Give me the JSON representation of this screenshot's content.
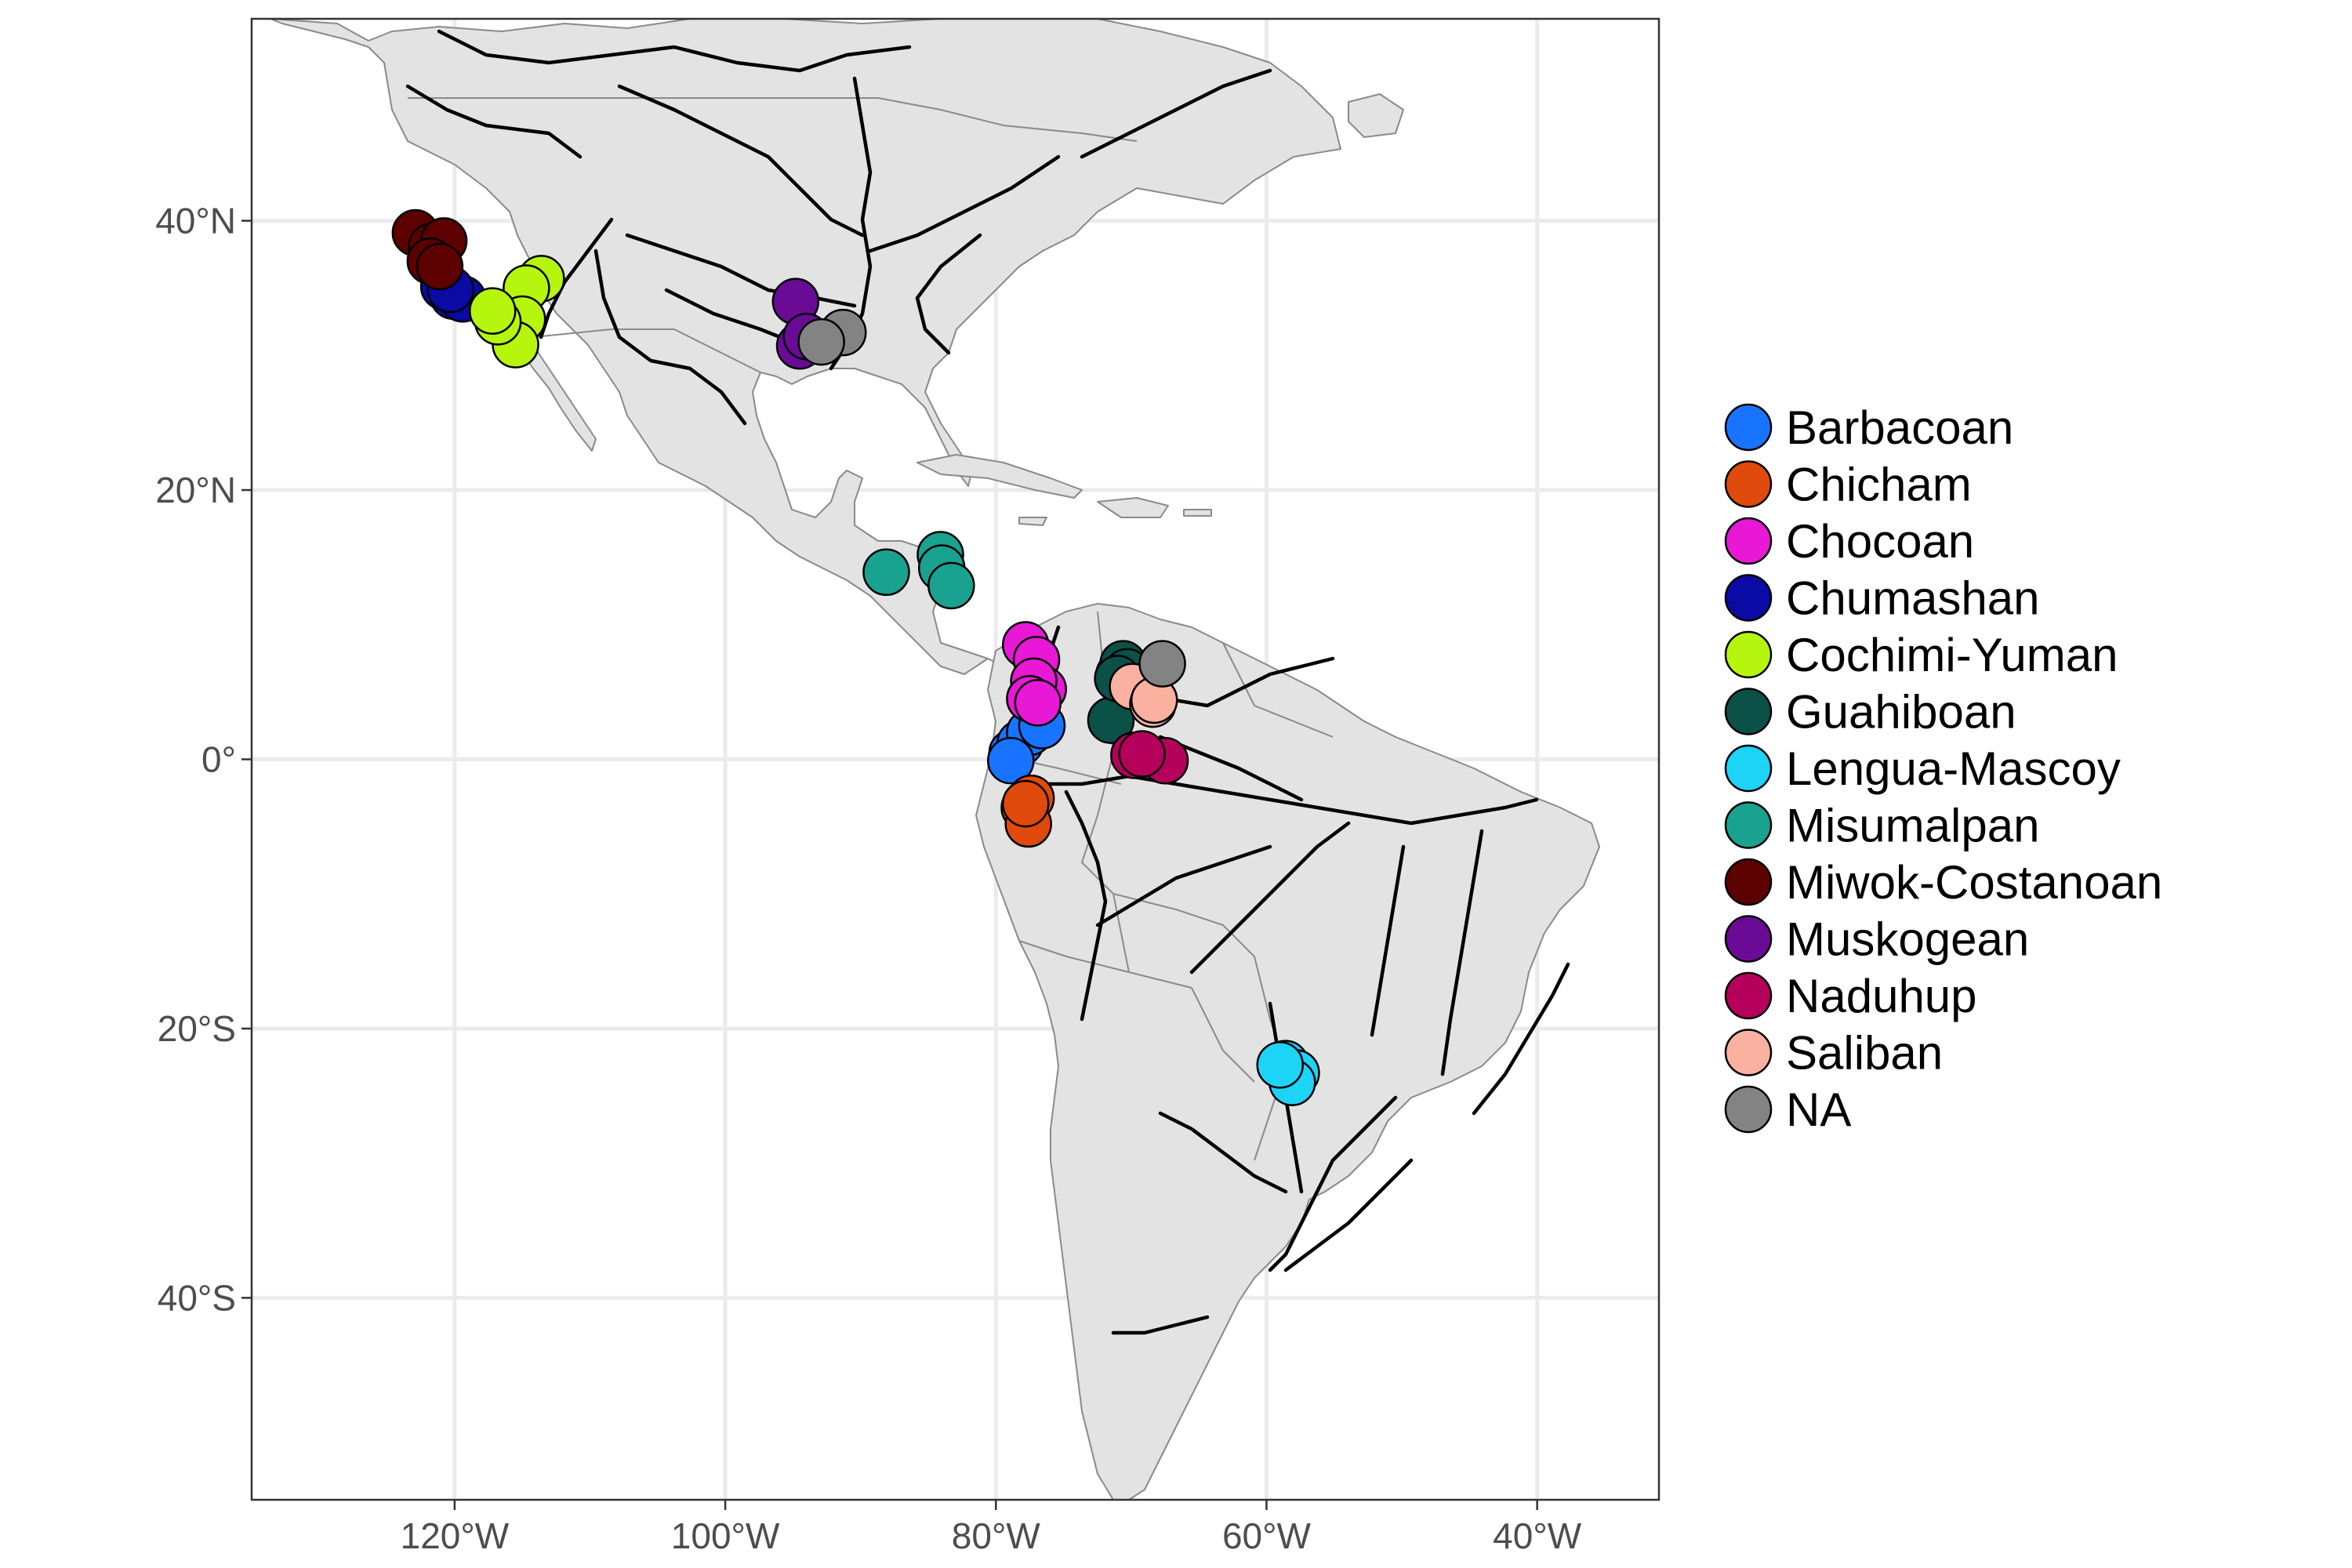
{
  "chart_data": {
    "type": "scatter",
    "title": "",
    "xlabel": "",
    "ylabel": "",
    "xlim": [
      -135,
      -31
    ],
    "ylim": [
      -55,
      55
    ],
    "grid": true,
    "legend_position": "right",
    "x_ticks": [
      {
        "value": -120,
        "label": "120°W"
      },
      {
        "value": -100,
        "label": "100°W"
      },
      {
        "value": -80,
        "label": "80°W"
      },
      {
        "value": -60,
        "label": "60°W"
      },
      {
        "value": -40,
        "label": "40°W"
      }
    ],
    "y_ticks": [
      {
        "value": 40,
        "label": "40°N"
      },
      {
        "value": 20,
        "label": "20°N"
      },
      {
        "value": 0,
        "label": "0°"
      },
      {
        "value": -20,
        "label": "20°S"
      },
      {
        "value": -40,
        "label": "40°S"
      }
    ],
    "series": [
      {
        "name": "Barbacoan",
        "color": "#1874ff",
        "points": [
          [
            -78.8,
            0.5
          ],
          [
            -78.2,
            1.2
          ],
          [
            -77.5,
            2.0
          ],
          [
            -76.6,
            2.5
          ],
          [
            -78.9,
            -0.1
          ]
        ]
      },
      {
        "name": "Chicham",
        "color": "#e04a0c",
        "points": [
          [
            -77.4,
            -2.9
          ],
          [
            -77.9,
            -3.6
          ],
          [
            -77.6,
            -4.8
          ],
          [
            -77.8,
            -3.3
          ]
        ]
      },
      {
        "name": "Chocoan",
        "color": "#e818d6",
        "points": [
          [
            -77.8,
            8.5
          ],
          [
            -77.0,
            7.4
          ],
          [
            -76.5,
            5.2
          ],
          [
            -77.2,
            5.8
          ],
          [
            -77.5,
            4.5
          ],
          [
            -76.9,
            4.2
          ]
        ]
      },
      {
        "name": "Chumashan",
        "color": "#0a0aa4",
        "points": [
          [
            -120.8,
            35.1
          ],
          [
            -120.1,
            34.4
          ],
          [
            -119.4,
            34.2
          ],
          [
            -120.3,
            34.9
          ]
        ]
      },
      {
        "name": "Cochimi-Yuman",
        "color": "#b5f50e",
        "points": [
          [
            -113.6,
            35.7
          ],
          [
            -114.7,
            35.0
          ],
          [
            -115.0,
            32.7
          ],
          [
            -115.5,
            30.8
          ],
          [
            -116.8,
            32.5
          ],
          [
            -117.2,
            33.3
          ]
        ]
      },
      {
        "name": "Guahiboan",
        "color": "#0b5148",
        "points": [
          [
            -70.9,
            6.3
          ],
          [
            -70.6,
            7.1
          ],
          [
            -70.3,
            6.5
          ],
          [
            -71.5,
            2.9
          ],
          [
            -71.0,
            6.0
          ]
        ]
      },
      {
        "name": "Lengua-Mascoy",
        "color": "#1dd4f7",
        "points": [
          [
            -58.6,
            -22.6
          ],
          [
            -57.8,
            -23.3
          ],
          [
            -58.1,
            -24.0
          ],
          [
            -59.0,
            -22.7
          ]
        ]
      },
      {
        "name": "Misumalpan",
        "color": "#19a28f",
        "points": [
          [
            -84.1,
            15.2
          ],
          [
            -84.0,
            14.2
          ],
          [
            -83.3,
            12.9
          ],
          [
            -88.1,
            13.9
          ]
        ]
      },
      {
        "name": "Miwok-Costanoan",
        "color": "#5d0000",
        "points": [
          [
            -122.9,
            39.1
          ],
          [
            -121.7,
            38.1
          ],
          [
            -120.8,
            38.5
          ],
          [
            -121.8,
            37.0
          ],
          [
            -121.1,
            36.6
          ]
        ]
      },
      {
        "name": "Muskogean",
        "color": "#6a0b96",
        "points": [
          [
            -94.8,
            34.0
          ],
          [
            -94.5,
            30.7
          ],
          [
            -94.0,
            31.4
          ]
        ]
      },
      {
        "name": "Naduhup",
        "color": "#b5015c",
        "points": [
          [
            -69.8,
            0.3
          ],
          [
            -67.5,
            -0.1
          ],
          [
            -69.2,
            0.4
          ]
        ]
      },
      {
        "name": "Saliban",
        "color": "#fab1a0",
        "points": [
          [
            -69.9,
            5.4
          ],
          [
            -68.4,
            4.1
          ],
          [
            -68.3,
            4.4
          ]
        ]
      },
      {
        "name": "NA",
        "color": "#838383",
        "points": [
          [
            -91.3,
            31.7
          ],
          [
            -92.9,
            31.0
          ],
          [
            -67.7,
            7.1
          ]
        ]
      }
    ]
  }
}
